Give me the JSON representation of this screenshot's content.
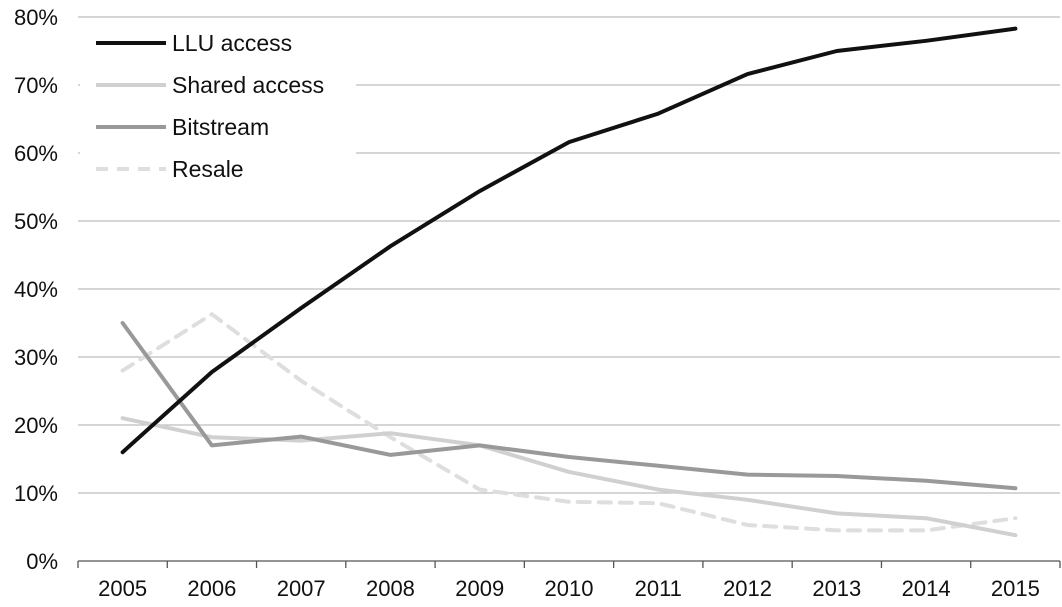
{
  "chart_data": {
    "type": "line",
    "title": "",
    "xlabel": "",
    "ylabel": "",
    "categories": [
      "2005",
      "2006",
      "2007",
      "2008",
      "2009",
      "2010",
      "2011",
      "2012",
      "2013",
      "2014",
      "2015"
    ],
    "yticks": [
      "0%",
      "10%",
      "20%",
      "30%",
      "40%",
      "50%",
      "60%",
      "70%",
      "80%"
    ],
    "ylim": [
      0,
      80
    ],
    "grid": true,
    "legend_position": "top-left",
    "series": [
      {
        "name": "LLU access",
        "color": "#111111",
        "dash": "solid",
        "values": [
          16.0,
          27.8,
          37.2,
          46.3,
          54.4,
          61.6,
          65.8,
          71.6,
          75.0,
          76.5,
          78.3
        ]
      },
      {
        "name": "Shared access",
        "color": "#d0d0d0",
        "dash": "solid",
        "values": [
          21.0,
          18.2,
          17.7,
          18.8,
          17.0,
          13.1,
          10.5,
          9.0,
          7.0,
          6.3,
          3.8
        ]
      },
      {
        "name": "Bitstream",
        "color": "#999999",
        "dash": "solid",
        "values": [
          35.0,
          17.0,
          18.3,
          15.6,
          17.0,
          15.3,
          14.0,
          12.7,
          12.5,
          11.8,
          10.7
        ]
      },
      {
        "name": "Resale",
        "color": "#dedede",
        "dash": "dashed",
        "values": [
          28.0,
          36.3,
          26.5,
          18.2,
          10.5,
          8.7,
          8.5,
          5.3,
          4.5,
          4.5,
          6.3
        ]
      }
    ]
  }
}
